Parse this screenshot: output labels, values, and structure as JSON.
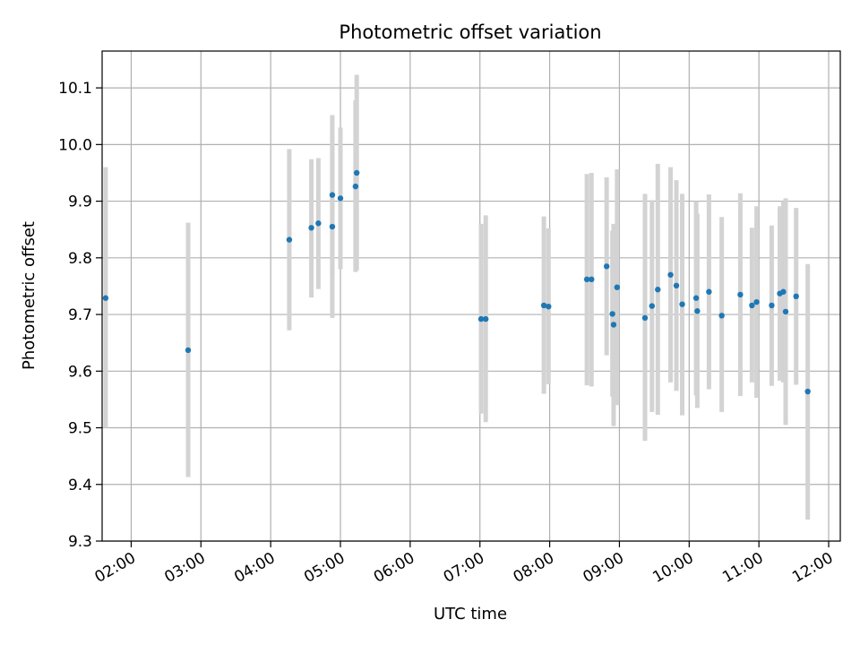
{
  "chart_data": {
    "type": "scatter",
    "title": "Photometric offset variation",
    "xlabel": "UTC time",
    "ylabel": "Photometric offset",
    "xlim": [
      "01:35",
      "12:10"
    ],
    "ylim": [
      9.3,
      10.165
    ],
    "x_ticks": [
      "02:00",
      "03:00",
      "04:00",
      "05:00",
      "06:00",
      "07:00",
      "08:00",
      "09:00",
      "10:00",
      "11:00",
      "12:00"
    ],
    "y_ticks": [
      "9.3",
      "9.4",
      "9.5",
      "9.6",
      "9.7",
      "9.8",
      "9.9",
      "10.0",
      "10.1"
    ],
    "grid": true,
    "marker_color": "#1f77b4",
    "errorbar_color": "#d3d3d3",
    "points": [
      {
        "x": "01:38",
        "y": 9.729,
        "lo": 9.5,
        "hi": 9.96
      },
      {
        "x": "02:49",
        "y": 9.637,
        "lo": 9.413,
        "hi": 9.862
      },
      {
        "x": "04:16",
        "y": 9.832,
        "lo": 9.672,
        "hi": 9.992
      },
      {
        "x": "04:35",
        "y": 9.853,
        "lo": 9.73,
        "hi": 9.974
      },
      {
        "x": "04:41",
        "y": 9.861,
        "lo": 9.745,
        "hi": 9.976
      },
      {
        "x": "04:53",
        "y": 9.911,
        "lo": 9.77,
        "hi": 10.052
      },
      {
        "x": "04:53",
        "y": 9.855,
        "lo": 9.694,
        "hi": 10.015
      },
      {
        "x": "05:00",
        "y": 9.905,
        "lo": 9.78,
        "hi": 10.03
      },
      {
        "x": "05:13",
        "y": 9.926,
        "lo": 9.775,
        "hi": 10.078
      },
      {
        "x": "05:14",
        "y": 9.95,
        "lo": 9.778,
        "hi": 10.123
      },
      {
        "x": "07:01",
        "y": 9.692,
        "lo": 9.525,
        "hi": 9.86
      },
      {
        "x": "07:05",
        "y": 9.692,
        "lo": 9.51,
        "hi": 9.875
      },
      {
        "x": "07:55",
        "y": 9.716,
        "lo": 9.56,
        "hi": 9.873
      },
      {
        "x": "07:59",
        "y": 9.714,
        "lo": 9.577,
        "hi": 9.852
      },
      {
        "x": "08:32",
        "y": 9.762,
        "lo": 9.575,
        "hi": 9.948
      },
      {
        "x": "08:36",
        "y": 9.762,
        "lo": 9.573,
        "hi": 9.95
      },
      {
        "x": "08:49",
        "y": 9.785,
        "lo": 9.628,
        "hi": 9.942
      },
      {
        "x": "08:54",
        "y": 9.701,
        "lo": 9.555,
        "hi": 9.848
      },
      {
        "x": "08:55",
        "y": 9.682,
        "lo": 9.503,
        "hi": 9.86
      },
      {
        "x": "08:58",
        "y": 9.748,
        "lo": 9.54,
        "hi": 9.956
      },
      {
        "x": "09:22",
        "y": 9.694,
        "lo": 9.477,
        "hi": 9.913
      },
      {
        "x": "09:28",
        "y": 9.715,
        "lo": 9.528,
        "hi": 9.902
      },
      {
        "x": "09:33",
        "y": 9.744,
        "lo": 9.523,
        "hi": 9.966
      },
      {
        "x": "09:44",
        "y": 9.77,
        "lo": 9.58,
        "hi": 9.96
      },
      {
        "x": "09:49",
        "y": 9.751,
        "lo": 9.565,
        "hi": 9.937
      },
      {
        "x": "09:54",
        "y": 9.718,
        "lo": 9.522,
        "hi": 9.913
      },
      {
        "x": "10:06",
        "y": 9.729,
        "lo": 9.557,
        "hi": 9.9
      },
      {
        "x": "10:07",
        "y": 9.706,
        "lo": 9.535,
        "hi": 9.878
      },
      {
        "x": "10:17",
        "y": 9.74,
        "lo": 9.568,
        "hi": 9.912
      },
      {
        "x": "10:28",
        "y": 9.698,
        "lo": 9.528,
        "hi": 9.872
      },
      {
        "x": "10:44",
        "y": 9.735,
        "lo": 9.556,
        "hi": 9.914
      },
      {
        "x": "10:54",
        "y": 9.716,
        "lo": 9.58,
        "hi": 9.853
      },
      {
        "x": "10:58",
        "y": 9.722,
        "lo": 9.553,
        "hi": 9.891
      },
      {
        "x": "11:11",
        "y": 9.716,
        "lo": 9.574,
        "hi": 9.857
      },
      {
        "x": "11:18",
        "y": 9.737,
        "lo": 9.583,
        "hi": 9.891
      },
      {
        "x": "11:21",
        "y": 9.74,
        "lo": 9.58,
        "hi": 9.9
      },
      {
        "x": "11:23",
        "y": 9.705,
        "lo": 9.505,
        "hi": 9.905
      },
      {
        "x": "11:32",
        "y": 9.732,
        "lo": 9.576,
        "hi": 9.888
      },
      {
        "x": "11:42",
        "y": 9.564,
        "lo": 9.338,
        "hi": 9.789
      }
    ]
  }
}
